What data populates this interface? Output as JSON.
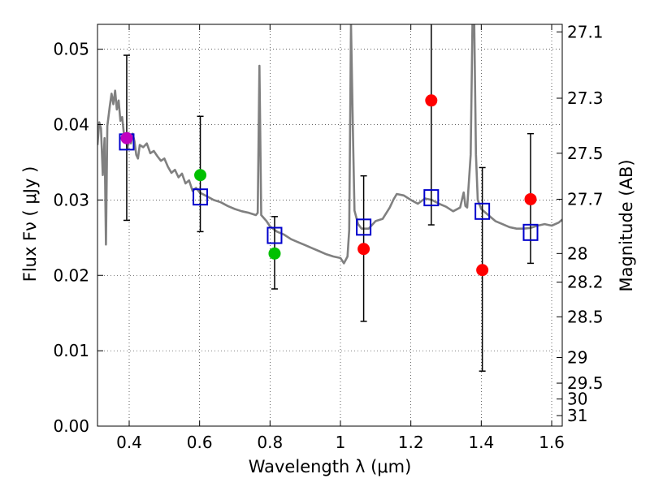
{
  "chart_data": {
    "type": "scatter",
    "xlabel": "Wavelength  λ (μm)",
    "ylabel": "Flux  Fν  ( μJy )",
    "ylabel_right": "Magnitude (AB)",
    "xlim": [
      0.31,
      1.63
    ],
    "ylim": [
      0.0,
      0.0533
    ],
    "grid": true,
    "x_ticks": [
      0.4,
      0.6,
      0.8,
      1.0,
      1.2,
      1.4,
      1.6
    ],
    "x_tick_labels": [
      "0.4",
      "0.6",
      "0.8",
      "1",
      "1.2",
      "1.4",
      "1.6"
    ],
    "y_ticks": [
      0.0,
      0.01,
      0.02,
      0.03,
      0.04,
      0.05
    ],
    "y_tick_labels": [
      "0.00",
      "0.01",
      "0.02",
      "0.03",
      "0.04",
      "0.05"
    ],
    "mag_ticks": [
      {
        "label": "27.1",
        "flux": 0.0523
      },
      {
        "label": "27.3",
        "flux": 0.0435
      },
      {
        "label": "27.5",
        "flux": 0.0362
      },
      {
        "label": "27.7",
        "flux": 0.0301
      },
      {
        "label": "28",
        "flux": 0.0229
      },
      {
        "label": "28.2",
        "flux": 0.0191
      },
      {
        "label": "28.5",
        "flux": 0.0145
      },
      {
        "label": "29",
        "flux": 0.0091
      },
      {
        "label": "29.5",
        "flux": 0.0057
      },
      {
        "label": "30",
        "flux": 0.0036
      },
      {
        "label": "31",
        "flux": 0.0014
      }
    ],
    "model_points": [
      {
        "x": 0.393,
        "y": 0.0377
      },
      {
        "x": 0.602,
        "y": 0.0304
      },
      {
        "x": 0.813,
        "y": 0.0253
      },
      {
        "x": 1.066,
        "y": 0.0264
      },
      {
        "x": 1.258,
        "y": 0.0303
      },
      {
        "x": 1.403,
        "y": 0.0285
      },
      {
        "x": 1.54,
        "y": 0.0257
      }
    ],
    "observed_points": [
      {
        "x": 0.393,
        "y": 0.0382,
        "yerr_lo": 0.0273,
        "yerr_hi": 0.0492,
        "color": "#c000c0"
      },
      {
        "x": 0.602,
        "y": 0.0333,
        "yerr_lo": 0.0258,
        "yerr_hi": 0.0411,
        "color": "#00c000"
      },
      {
        "x": 0.813,
        "y": 0.0229,
        "yerr_lo": 0.0182,
        "yerr_hi": 0.0278,
        "color": "#00c000"
      },
      {
        "x": 1.066,
        "y": 0.0235,
        "yerr_lo": 0.0139,
        "yerr_hi": 0.0332,
        "color": "#ff0000"
      },
      {
        "x": 1.258,
        "y": 0.0432,
        "yerr_lo": 0.0267,
        "yerr_hi": 0.0533,
        "color": "#ff0000"
      },
      {
        "x": 1.403,
        "y": 0.0207,
        "yerr_lo": 0.0073,
        "yerr_hi": 0.0343,
        "color": "#ff0000"
      },
      {
        "x": 1.54,
        "y": 0.0301,
        "yerr_lo": 0.0216,
        "yerr_hi": 0.0388,
        "color": "#ff0000"
      }
    ],
    "sed_curve": [
      [
        0.31,
        0.0373
      ],
      [
        0.315,
        0.0403
      ],
      [
        0.32,
        0.0395
      ],
      [
        0.325,
        0.0333
      ],
      [
        0.33,
        0.0382
      ],
      [
        0.334,
        0.0241
      ],
      [
        0.338,
        0.0398
      ],
      [
        0.345,
        0.0425
      ],
      [
        0.35,
        0.0441
      ],
      [
        0.355,
        0.0427
      ],
      [
        0.36,
        0.0445
      ],
      [
        0.365,
        0.042
      ],
      [
        0.37,
        0.0432
      ],
      [
        0.375,
        0.0405
      ],
      [
        0.38,
        0.041
      ],
      [
        0.385,
        0.0388
      ],
      [
        0.39,
        0.0385
      ],
      [
        0.395,
        0.0368
      ],
      [
        0.4,
        0.0382
      ],
      [
        0.405,
        0.0375
      ],
      [
        0.41,
        0.0388
      ],
      [
        0.415,
        0.0378
      ],
      [
        0.42,
        0.036
      ],
      [
        0.425,
        0.0355
      ],
      [
        0.43,
        0.0373
      ],
      [
        0.44,
        0.037
      ],
      [
        0.45,
        0.0375
      ],
      [
        0.46,
        0.0362
      ],
      [
        0.47,
        0.0365
      ],
      [
        0.48,
        0.0358
      ],
      [
        0.49,
        0.0352
      ],
      [
        0.5,
        0.0355
      ],
      [
        0.51,
        0.0344
      ],
      [
        0.52,
        0.0336
      ],
      [
        0.53,
        0.034
      ],
      [
        0.54,
        0.033
      ],
      [
        0.55,
        0.0335
      ],
      [
        0.56,
        0.0322
      ],
      [
        0.57,
        0.0326
      ],
      [
        0.58,
        0.0312
      ],
      [
        0.59,
        0.0316
      ],
      [
        0.6,
        0.031
      ],
      [
        0.62,
        0.0305
      ],
      [
        0.64,
        0.03
      ],
      [
        0.66,
        0.0297
      ],
      [
        0.68,
        0.0292
      ],
      [
        0.7,
        0.0288
      ],
      [
        0.72,
        0.0285
      ],
      [
        0.74,
        0.0283
      ],
      [
        0.76,
        0.028
      ],
      [
        0.765,
        0.0283
      ],
      [
        0.77,
        0.0478
      ],
      [
        0.775,
        0.028
      ],
      [
        0.79,
        0.0272
      ],
      [
        0.8,
        0.0265
      ],
      [
        0.82,
        0.0258
      ],
      [
        0.84,
        0.0254
      ],
      [
        0.86,
        0.0248
      ],
      [
        0.88,
        0.0244
      ],
      [
        0.9,
        0.024
      ],
      [
        0.92,
        0.0236
      ],
      [
        0.94,
        0.0232
      ],
      [
        0.96,
        0.0228
      ],
      [
        0.98,
        0.0225
      ],
      [
        1.0,
        0.0223
      ],
      [
        1.01,
        0.0216
      ],
      [
        1.02,
        0.0225
      ],
      [
        1.025,
        0.026
      ],
      [
        1.03,
        0.0533
      ],
      [
        1.035,
        0.04
      ],
      [
        1.04,
        0.0286
      ],
      [
        1.05,
        0.0268
      ],
      [
        1.06,
        0.0262
      ],
      [
        1.08,
        0.0262
      ],
      [
        1.1,
        0.0272
      ],
      [
        1.12,
        0.0275
      ],
      [
        1.14,
        0.029
      ],
      [
        1.15,
        0.03
      ],
      [
        1.16,
        0.0308
      ],
      [
        1.18,
        0.0306
      ],
      [
        1.2,
        0.03
      ],
      [
        1.22,
        0.0295
      ],
      [
        1.24,
        0.0302
      ],
      [
        1.26,
        0.03
      ],
      [
        1.28,
        0.0295
      ],
      [
        1.3,
        0.0291
      ],
      [
        1.32,
        0.0285
      ],
      [
        1.34,
        0.029
      ],
      [
        1.35,
        0.031
      ],
      [
        1.355,
        0.0292
      ],
      [
        1.36,
        0.029
      ],
      [
        1.37,
        0.036
      ],
      [
        1.375,
        0.0533
      ],
      [
        1.38,
        0.0533
      ],
      [
        1.385,
        0.036
      ],
      [
        1.39,
        0.03
      ],
      [
        1.4,
        0.0288
      ],
      [
        1.42,
        0.028
      ],
      [
        1.44,
        0.0272
      ],
      [
        1.46,
        0.0268
      ],
      [
        1.48,
        0.0264
      ],
      [
        1.5,
        0.0262
      ],
      [
        1.52,
        0.0262
      ],
      [
        1.54,
        0.0263
      ],
      [
        1.56,
        0.0266
      ],
      [
        1.58,
        0.0268
      ],
      [
        1.6,
        0.0266
      ],
      [
        1.62,
        0.027
      ],
      [
        1.63,
        0.0274
      ]
    ]
  }
}
